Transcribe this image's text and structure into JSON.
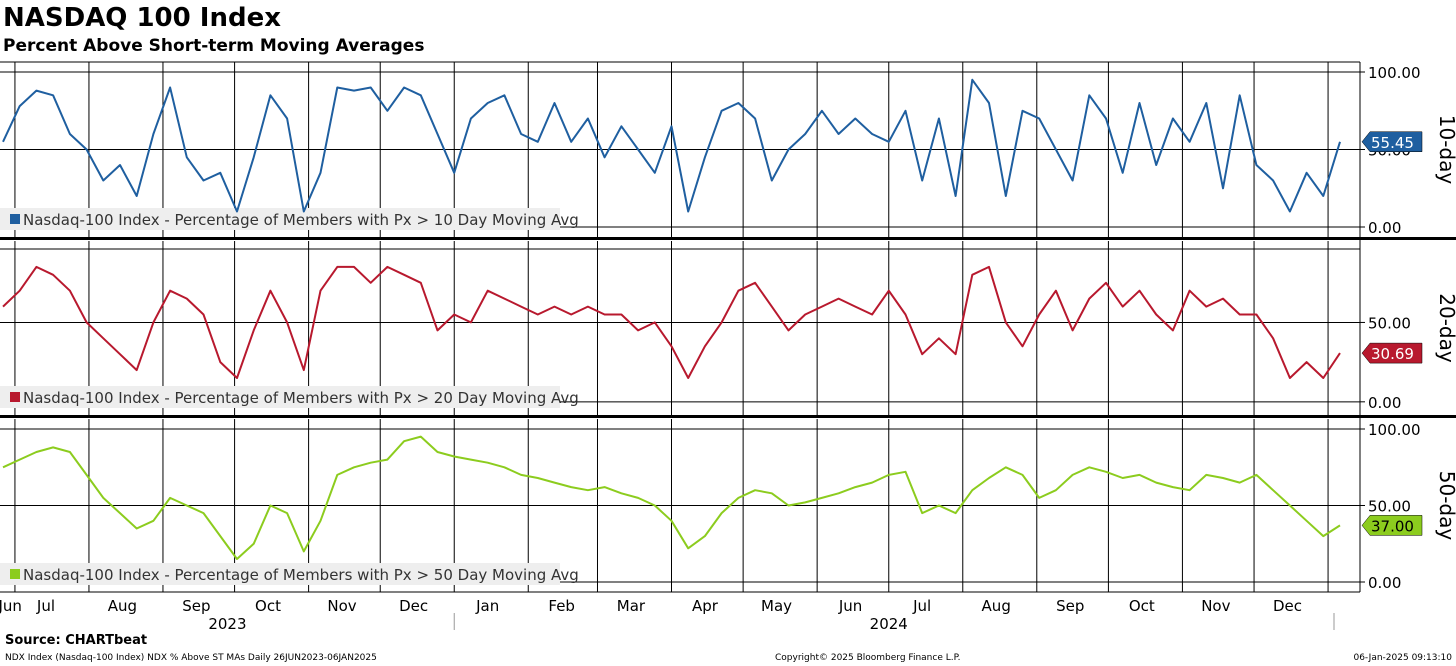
{
  "title": "NASDAQ 100 Index",
  "subtitle": "Percent Above Short-term Moving Averages",
  "source": "Source: CHARTbeat",
  "footer": {
    "left": "NDX Index (Nasdaq-100 Index) NDX % Above ST MAs  Daily 26JUN2023-06JAN2025",
    "center": "Copyright© 2025 Bloomberg Finance L.P.",
    "right": "06-Jan-2025 09:13:10"
  },
  "x_axis": {
    "months": [
      "Jun",
      "Jul",
      "Aug",
      "Sep",
      "Oct",
      "Nov",
      "Dec",
      "Jan",
      "Feb",
      "Mar",
      "Apr",
      "May",
      "Jun",
      "Jul",
      "Aug",
      "Sep",
      "Oct",
      "Nov",
      "Dec"
    ],
    "years": [
      "2023",
      "2024"
    ]
  },
  "chart_data": [
    {
      "type": "line",
      "panel": "10-day",
      "panel_label": "10-day",
      "legend": "Nasdaq-100 Index - Percentage of Members with Px > 10 Day Moving Avg",
      "color": "#1f5fa0",
      "ylim": [
        0,
        100
      ],
      "yticks": [
        "100.00",
        "50.00",
        "0.00"
      ],
      "last_value_label": "55.45",
      "x": [
        "2023-06-26",
        "2023-07-03",
        "2023-07-10",
        "2023-07-17",
        "2023-07-24",
        "2023-07-31",
        "2023-08-07",
        "2023-08-14",
        "2023-08-21",
        "2023-08-28",
        "2023-09-04",
        "2023-09-11",
        "2023-09-18",
        "2023-09-25",
        "2023-10-02",
        "2023-10-09",
        "2023-10-16",
        "2023-10-23",
        "2023-10-30",
        "2023-11-06",
        "2023-11-13",
        "2023-11-20",
        "2023-11-27",
        "2023-12-04",
        "2023-12-11",
        "2023-12-18",
        "2023-12-25",
        "2024-01-01",
        "2024-01-08",
        "2024-01-15",
        "2024-01-22",
        "2024-01-29",
        "2024-02-05",
        "2024-02-12",
        "2024-02-19",
        "2024-02-26",
        "2024-03-04",
        "2024-03-11",
        "2024-03-18",
        "2024-03-25",
        "2024-04-01",
        "2024-04-08",
        "2024-04-15",
        "2024-04-22",
        "2024-04-29",
        "2024-05-06",
        "2024-05-13",
        "2024-05-20",
        "2024-05-27",
        "2024-06-03",
        "2024-06-10",
        "2024-06-17",
        "2024-06-24",
        "2024-07-01",
        "2024-07-08",
        "2024-07-15",
        "2024-07-22",
        "2024-07-29",
        "2024-08-05",
        "2024-08-12",
        "2024-08-19",
        "2024-08-26",
        "2024-09-02",
        "2024-09-09",
        "2024-09-16",
        "2024-09-23",
        "2024-09-30",
        "2024-10-07",
        "2024-10-14",
        "2024-10-21",
        "2024-10-28",
        "2024-11-04",
        "2024-11-11",
        "2024-11-18",
        "2024-11-25",
        "2024-12-02",
        "2024-12-09",
        "2024-12-16",
        "2024-12-23",
        "2024-12-30",
        "2025-01-06"
      ],
      "values": [
        55,
        78,
        88,
        85,
        60,
        50,
        30,
        40,
        20,
        60,
        90,
        45,
        30,
        35,
        10,
        45,
        85,
        70,
        10,
        35,
        90,
        88,
        90,
        75,
        90,
        85,
        60,
        35,
        70,
        80,
        85,
        60,
        55,
        80,
        55,
        70,
        45,
        65,
        50,
        35,
        65,
        10,
        45,
        75,
        80,
        70,
        30,
        50,
        60,
        75,
        60,
        70,
        60,
        55,
        75,
        30,
        70,
        20,
        95,
        80,
        20,
        75,
        70,
        50,
        30,
        85,
        70,
        35,
        80,
        40,
        70,
        55,
        80,
        25,
        85,
        40,
        30,
        10,
        35,
        20,
        55
      ]
    },
    {
      "type": "line",
      "panel": "20-day",
      "panel_label": "20-day",
      "legend": "Nasdaq-100 Index - Percentage of Members with Px > 20 Day Moving Avg",
      "color": "#b8192e",
      "ylim": [
        -2,
        95
      ],
      "yticks": [
        "50.00",
        "0.00"
      ],
      "last_value_label": "30.69",
      "x": [
        "2023-06-26",
        "2023-07-03",
        "2023-07-10",
        "2023-07-17",
        "2023-07-24",
        "2023-07-31",
        "2023-08-07",
        "2023-08-14",
        "2023-08-21",
        "2023-08-28",
        "2023-09-04",
        "2023-09-11",
        "2023-09-18",
        "2023-09-25",
        "2023-10-02",
        "2023-10-09",
        "2023-10-16",
        "2023-10-23",
        "2023-10-30",
        "2023-11-06",
        "2023-11-13",
        "2023-11-20",
        "2023-11-27",
        "2023-12-04",
        "2023-12-11",
        "2023-12-18",
        "2023-12-25",
        "2024-01-01",
        "2024-01-08",
        "2024-01-15",
        "2024-01-22",
        "2024-01-29",
        "2024-02-05",
        "2024-02-12",
        "2024-02-19",
        "2024-02-26",
        "2024-03-04",
        "2024-03-11",
        "2024-03-18",
        "2024-03-25",
        "2024-04-01",
        "2024-04-08",
        "2024-04-15",
        "2024-04-22",
        "2024-04-29",
        "2024-05-06",
        "2024-05-13",
        "2024-05-20",
        "2024-05-27",
        "2024-06-03",
        "2024-06-10",
        "2024-06-17",
        "2024-06-24",
        "2024-07-01",
        "2024-07-08",
        "2024-07-15",
        "2024-07-22",
        "2024-07-29",
        "2024-08-05",
        "2024-08-12",
        "2024-08-19",
        "2024-08-26",
        "2024-09-02",
        "2024-09-09",
        "2024-09-16",
        "2024-09-23",
        "2024-09-30",
        "2024-10-07",
        "2024-10-14",
        "2024-10-21",
        "2024-10-28",
        "2024-11-04",
        "2024-11-11",
        "2024-11-18",
        "2024-11-25",
        "2024-12-02",
        "2024-12-09",
        "2024-12-16",
        "2024-12-23",
        "2024-12-30",
        "2025-01-06"
      ],
      "values": [
        60,
        70,
        85,
        80,
        70,
        50,
        40,
        30,
        20,
        50,
        70,
        65,
        55,
        25,
        15,
        45,
        70,
        50,
        20,
        70,
        85,
        85,
        75,
        85,
        80,
        75,
        45,
        55,
        50,
        70,
        65,
        60,
        55,
        60,
        55,
        60,
        55,
        55,
        45,
        50,
        35,
        15,
        35,
        50,
        70,
        75,
        60,
        45,
        55,
        60,
        65,
        60,
        55,
        70,
        55,
        30,
        40,
        30,
        80,
        85,
        50,
        35,
        55,
        70,
        45,
        65,
        75,
        60,
        70,
        55,
        45,
        70,
        60,
        65,
        55,
        55,
        40,
        15,
        25,
        15,
        30.69
      ]
    },
    {
      "type": "line",
      "panel": "50-day",
      "panel_label": "50-day",
      "legend": "Nasdaq-100 Index - Percentage of Members with Px > 50 Day Moving Avg",
      "color": "#8ccc1e",
      "ylim": [
        0,
        100
      ],
      "yticks": [
        "100.00",
        "50.00",
        "0.00"
      ],
      "last_value_label": "37.00",
      "x": [
        "2023-06-26",
        "2023-07-03",
        "2023-07-10",
        "2023-07-17",
        "2023-07-24",
        "2023-07-31",
        "2023-08-07",
        "2023-08-14",
        "2023-08-21",
        "2023-08-28",
        "2023-09-04",
        "2023-09-11",
        "2023-09-18",
        "2023-09-25",
        "2023-10-02",
        "2023-10-09",
        "2023-10-16",
        "2023-10-23",
        "2023-10-30",
        "2023-11-06",
        "2023-11-13",
        "2023-11-20",
        "2023-11-27",
        "2023-12-04",
        "2023-12-11",
        "2023-12-18",
        "2023-12-25",
        "2024-01-01",
        "2024-01-08",
        "2024-01-15",
        "2024-01-22",
        "2024-01-29",
        "2024-02-05",
        "2024-02-12",
        "2024-02-19",
        "2024-02-26",
        "2024-03-04",
        "2024-03-11",
        "2024-03-18",
        "2024-03-25",
        "2024-04-01",
        "2024-04-08",
        "2024-04-15",
        "2024-04-22",
        "2024-04-29",
        "2024-05-06",
        "2024-05-13",
        "2024-05-20",
        "2024-05-27",
        "2024-06-03",
        "2024-06-10",
        "2024-06-17",
        "2024-06-24",
        "2024-07-01",
        "2024-07-08",
        "2024-07-15",
        "2024-07-22",
        "2024-07-29",
        "2024-08-05",
        "2024-08-12",
        "2024-08-19",
        "2024-08-26",
        "2024-09-02",
        "2024-09-09",
        "2024-09-16",
        "2024-09-23",
        "2024-09-30",
        "2024-10-07",
        "2024-10-14",
        "2024-10-21",
        "2024-10-28",
        "2024-11-04",
        "2024-11-11",
        "2024-11-18",
        "2024-11-25",
        "2024-12-02",
        "2024-12-09",
        "2024-12-16",
        "2024-12-23",
        "2024-12-30",
        "2025-01-06"
      ],
      "values": [
        75,
        80,
        85,
        88,
        85,
        70,
        55,
        45,
        35,
        40,
        55,
        50,
        45,
        30,
        15,
        25,
        50,
        45,
        20,
        40,
        70,
        75,
        78,
        80,
        92,
        95,
        85,
        82,
        80,
        78,
        75,
        70,
        68,
        65,
        62,
        60,
        62,
        58,
        55,
        50,
        40,
        22,
        30,
        45,
        55,
        60,
        58,
        50,
        52,
        55,
        58,
        62,
        65,
        70,
        72,
        45,
        50,
        45,
        60,
        68,
        75,
        70,
        55,
        60,
        70,
        75,
        72,
        68,
        70,
        65,
        62,
        60,
        70,
        68,
        65,
        70,
        60,
        50,
        40,
        30,
        37
      ]
    }
  ]
}
